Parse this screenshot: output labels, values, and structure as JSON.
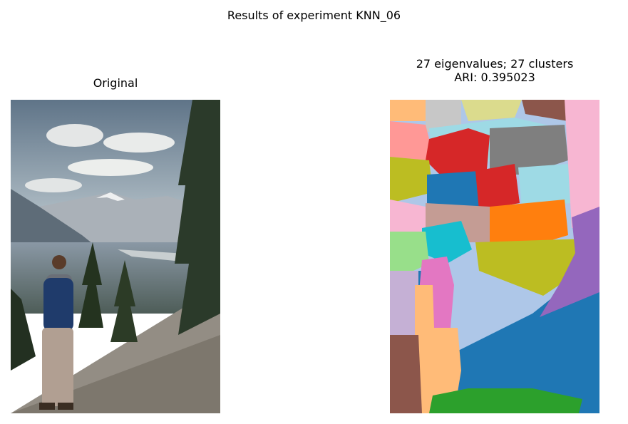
{
  "figure": {
    "suptitle": "Results of experiment KNN_06"
  },
  "left_panel": {
    "title": "Original",
    "image_desc": "hiker with backpack overlooking mountain valley with pines"
  },
  "right_panel": {
    "title_line1": "27 eigenvalues; 27 clusters",
    "title_line2": "ARI: 0.395023"
  },
  "chart_data": [
    {
      "type": "image",
      "title": "Original"
    },
    {
      "type": "image",
      "title": "27 eigenvalues; 27 clusters\nARI: 0.395023",
      "eigenvalues": 27,
      "clusters": 27,
      "ari": 0.395023,
      "palette": [
        "#1f77b4",
        "#aec7e8",
        "#ff7f0e",
        "#ffbb78",
        "#2ca02c",
        "#98df8a",
        "#d62728",
        "#ff9896",
        "#9467bd",
        "#c5b0d5",
        "#8c564b",
        "#c49c94",
        "#e377c2",
        "#f7b6d2",
        "#7f7f7f",
        "#c7c7c7",
        "#bcbd22",
        "#dbdb8d",
        "#17becf",
        "#9edae5"
      ]
    }
  ]
}
